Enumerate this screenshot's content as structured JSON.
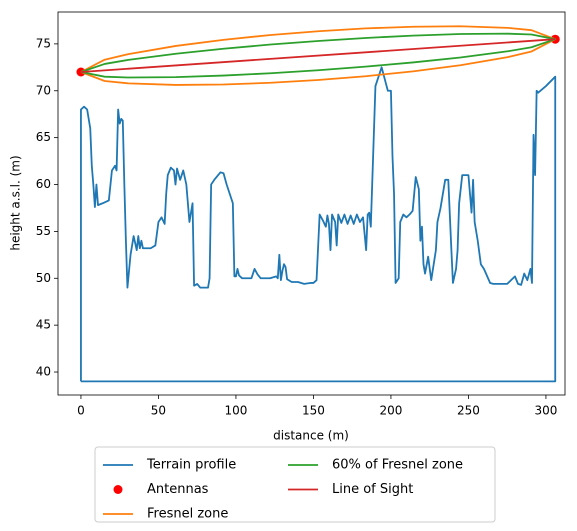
{
  "chart_data": {
    "type": "line",
    "xlabel": "distance (m)",
    "ylabel": "height a.s.l. (m)",
    "xlim": [
      -14.8,
      312.3
    ],
    "ylim": [
      37.55,
      78.4
    ],
    "xticks": [
      0,
      50,
      100,
      150,
      200,
      250,
      300
    ],
    "yticks": [
      40,
      45,
      50,
      55,
      60,
      65,
      70,
      75
    ],
    "legend": "below",
    "series": [
      {
        "name": "Terrain profile",
        "color": "#1f77b4",
        "kind": "line",
        "x": [
          0,
          0,
          2,
          4,
          6,
          7,
          8,
          9,
          10,
          11,
          14,
          18,
          20,
          22,
          23,
          24,
          25,
          26,
          27,
          28,
          29,
          30,
          32,
          34,
          36,
          37,
          38,
          39,
          40,
          45,
          48,
          50,
          52,
          54,
          55,
          56,
          58,
          60,
          61,
          62,
          64,
          66,
          68,
          70,
          72,
          73,
          75,
          77,
          82,
          83,
          84,
          86,
          90,
          92,
          94,
          96,
          98,
          99,
          100,
          101,
          102,
          104,
          110,
          112,
          114,
          116,
          122,
          126,
          127,
          128,
          129,
          130,
          131,
          132,
          133,
          136,
          140,
          144,
          148,
          150,
          152,
          154,
          156,
          158,
          159,
          160,
          161,
          162,
          164,
          165,
          166,
          168,
          170,
          172,
          174,
          176,
          178,
          180,
          182,
          184,
          185,
          186,
          187,
          190,
          194,
          198,
          200,
          201,
          202,
          203,
          205,
          206,
          208,
          210,
          212,
          214,
          216,
          218,
          219,
          220,
          221,
          222,
          224,
          226,
          229,
          230,
          232,
          235,
          237,
          239,
          240,
          242,
          243,
          244,
          246,
          250,
          252,
          253,
          254,
          256,
          258,
          260,
          264,
          266,
          270,
          275,
          280,
          282,
          284,
          286,
          288,
          290,
          291,
          292,
          293,
          294,
          295,
          300,
          306,
          306,
          0
        ],
        "y": [
          39,
          68,
          68.3,
          68,
          66,
          62,
          60,
          57.6,
          60,
          57.8,
          58,
          58.3,
          61.5,
          62,
          61.5,
          68,
          66.5,
          67,
          66.8,
          60,
          54,
          49,
          52.5,
          54.5,
          53,
          54.5,
          53.2,
          54,
          53.2,
          53.2,
          53.5,
          56,
          56.5,
          55.8,
          59,
          61,
          61.8,
          61.5,
          60,
          61.7,
          60.5,
          61.5,
          60,
          56,
          58,
          49.2,
          49.4,
          49,
          49,
          50,
          60,
          60.5,
          61.3,
          61.2,
          60,
          59,
          58,
          50.2,
          50.2,
          51,
          50.3,
          50,
          50,
          51,
          50.4,
          50,
          50,
          50.2,
          50,
          52.5,
          49.8,
          50.8,
          51.5,
          51.2,
          49.9,
          49.6,
          49.6,
          49.4,
          49.5,
          49.5,
          49.8,
          56.8,
          56.2,
          55.5,
          56.7,
          55.8,
          53,
          56.8,
          56,
          53.5,
          56.8,
          55.9,
          56.8,
          55.8,
          56.7,
          55.8,
          56.8,
          56,
          56.5,
          53,
          56.8,
          57,
          55.5,
          70.5,
          72.5,
          70,
          70,
          63,
          59,
          49.5,
          50,
          56,
          56.8,
          56.5,
          56.8,
          57.2,
          60.8,
          59.5,
          54,
          55.5,
          51.5,
          50.5,
          52.3,
          49.8,
          53,
          56,
          57.5,
          60.5,
          60.5,
          53,
          49.5,
          51,
          53,
          58,
          61,
          61,
          57,
          60.5,
          56,
          54,
          51.5,
          51,
          49.5,
          49.4,
          49.4,
          49.4,
          50.2,
          49.4,
          49.3,
          50.5,
          49.8,
          51,
          49.5,
          65.3,
          61,
          70,
          69.8,
          70.5,
          71.5,
          39,
          39
        ]
      },
      {
        "name": "Antennas",
        "color": "#ff0000",
        "kind": "marker",
        "x": [
          0,
          306
        ],
        "y": [
          72,
          75.5
        ]
      },
      {
        "name": "Fresnel zone",
        "color": "#ff7f0e",
        "kind": "line",
        "x": [
          0,
          15.3,
          30.6,
          61.2,
          91.8,
          122.4,
          153,
          183.6,
          214.2,
          244.8,
          275.4,
          290.7,
          306,
          290.7,
          275.4,
          244.8,
          214.2,
          183.6,
          153,
          122.4,
          91.8,
          61.2,
          30.6,
          15.3,
          0
        ],
        "y": [
          72,
          73.31,
          73.91,
          74.78,
          75.43,
          75.95,
          76.35,
          76.65,
          76.83,
          76.88,
          76.71,
          76.46,
          75.5,
          74.19,
          73.59,
          72.72,
          72.07,
          71.55,
          71.15,
          70.85,
          70.67,
          70.62,
          70.79,
          71.04,
          72
        ]
      },
      {
        "name": "60% of Fresnel zone",
        "color": "#2ca02c",
        "kind": "line",
        "x": [
          0,
          15.3,
          30.6,
          61.2,
          91.8,
          122.4,
          153,
          183.6,
          214.2,
          244.8,
          275.4,
          290.7,
          306,
          290.7,
          275.4,
          244.8,
          214.2,
          183.6,
          153,
          122.4,
          91.8,
          61.2,
          30.6,
          15.3,
          0
        ],
        "y": [
          72,
          72.86,
          73.29,
          73.95,
          74.48,
          74.93,
          75.31,
          75.63,
          75.88,
          76.05,
          76.09,
          76.0,
          75.5,
          74.64,
          74.21,
          73.55,
          73.02,
          72.57,
          72.19,
          71.87,
          71.62,
          71.45,
          71.41,
          71.5,
          72
        ]
      },
      {
        "name": "Line of Sight",
        "color": "#d62728",
        "kind": "line",
        "x": [
          0,
          306
        ],
        "y": [
          72,
          75.5
        ]
      }
    ]
  }
}
